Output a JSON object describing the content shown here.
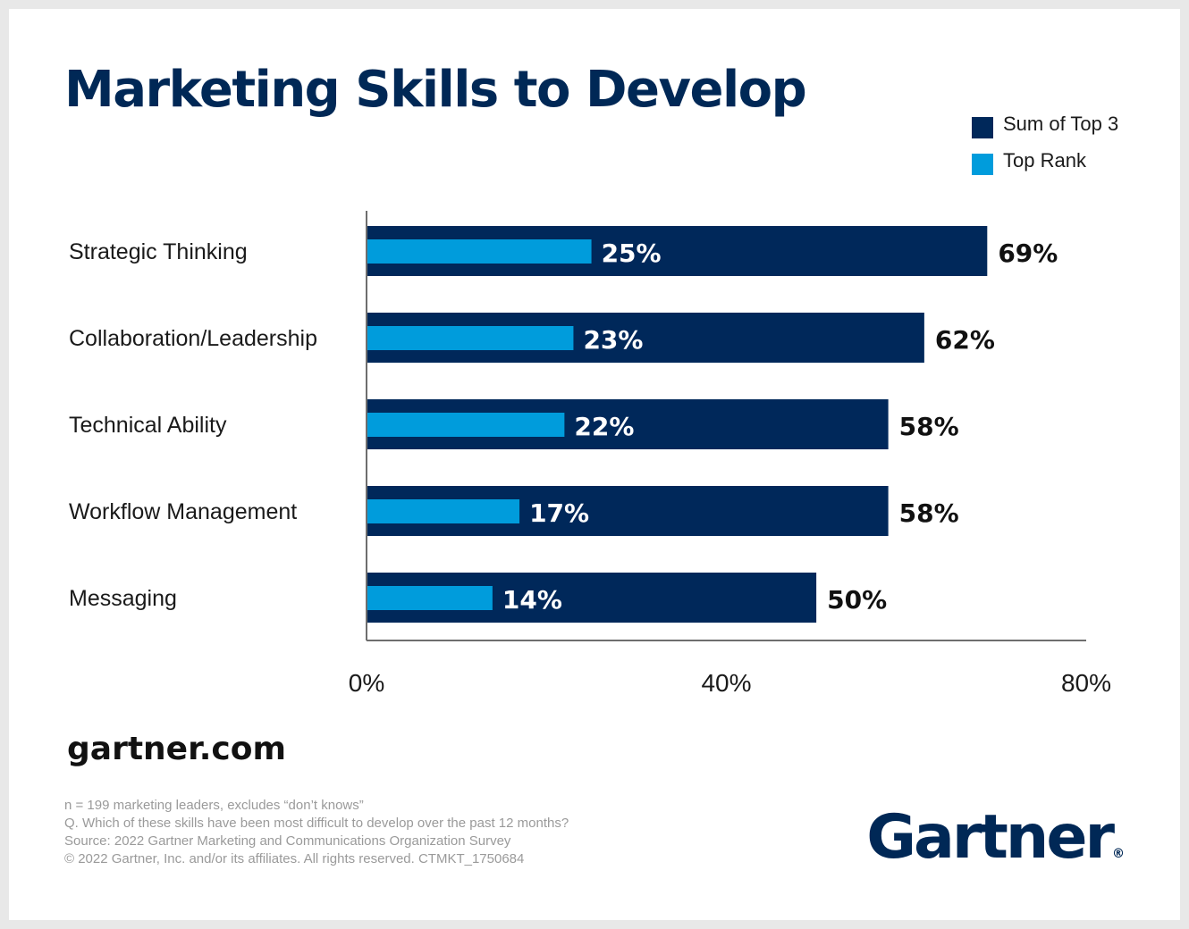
{
  "title": "Marketing Skills to Develop",
  "colors": {
    "sum_of_top_3": "#00285a",
    "top_rank": "#009cdc",
    "title": "#002856",
    "axis": "#6e6e6e"
  },
  "legend": [
    {
      "label": "Sum of Top 3",
      "color": "#00285a"
    },
    {
      "label": "Top Rank",
      "color": "#009cdc"
    }
  ],
  "chart_data": {
    "type": "bar",
    "orientation": "horizontal",
    "categories": [
      "Strategic Thinking",
      "Collaboration/Leadership",
      "Technical Ability",
      "Workflow Management",
      "Messaging"
    ],
    "series": [
      {
        "name": "Sum of Top 3",
        "values": [
          69,
          62,
          58,
          58,
          50
        ],
        "labels": [
          "69%",
          "62%",
          "58%",
          "58%",
          "50%"
        ]
      },
      {
        "name": "Top Rank",
        "values": [
          25,
          23,
          22,
          17,
          14
        ],
        "labels": [
          "25%",
          "23%",
          "22%",
          "17%",
          "14%"
        ]
      }
    ],
    "xlim": [
      0,
      80
    ],
    "xticks": [
      0,
      40,
      80
    ],
    "xtick_labels": [
      "0%",
      "40%",
      "80%"
    ],
    "grid": false,
    "legend_position": "top-right"
  },
  "footer": {
    "site": "gartner.com",
    "notes": [
      "n = 199 marketing leaders, excludes “don’t knows”",
      "Q. Which of these skills have been most difficult to develop over the past 12 months?",
      "Source: 2022 Gartner Marketing and Communications Organization Survey",
      "© 2022 Gartner, Inc. and/or its affiliates. All rights reserved. CTMKT_1750684"
    ],
    "brand": "Gartner",
    "brand_mark": "®"
  }
}
